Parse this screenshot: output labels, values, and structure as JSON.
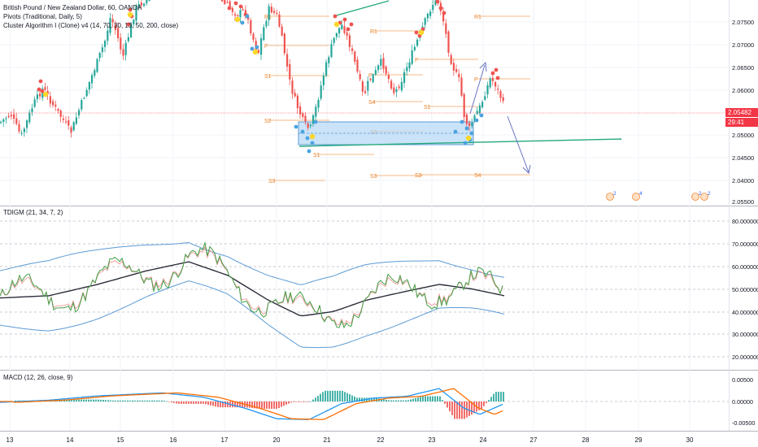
{
  "legend": {
    "symbol": "British Pound / New Zealand Dollar, 60, OANDA",
    "pivots": "Pivots (Traditional, Daily, 5)",
    "cluster": "Cluster Algorithm I (Clone) v4 (14, 70, 30, 13, 50, 200, close)"
  },
  "panes": {
    "tdigm": "TDIGM (21, 34, 7, 2)",
    "macd": "MACD (12, 26, close, 9)"
  },
  "price_axis": {
    "labels": [
      "2.07500",
      "2.07000",
      "2.06500",
      "2.06000",
      "2.05000",
      "2.04500",
      "2.04000"
    ],
    "current_price": "2.05482",
    "countdown": "29:41",
    "countdown_price": "2.05500"
  },
  "tdigm_axis": [
    "80.000000",
    "70.000000",
    "60.000000",
    "50.000000",
    "40.000000",
    "30.000000",
    "20.000000"
  ],
  "macd_axis": [
    "0.00500",
    "0.00000",
    "-0.00500"
  ],
  "time_axis": [
    "13",
    "14",
    "15",
    "16",
    "17",
    "20",
    "21",
    "22",
    "23",
    "24",
    "27",
    "28",
    "29",
    "30"
  ],
  "pivot_labels": [
    "R1",
    "R1",
    "R1",
    "P",
    "P",
    "P",
    "P",
    "S1",
    "S1",
    "S1",
    "S2",
    "S2",
    "S2",
    "S3",
    "S3",
    "S4",
    "S4",
    "S1"
  ],
  "event_badges": [
    "2",
    "4",
    "2",
    "2"
  ],
  "colors": {
    "up": "#26a69a",
    "down": "#ef5350",
    "pivot": "#f5a25d",
    "band": "#5b9bd5",
    "trend": "#22a87a",
    "arrow": "#6a75c4",
    "macd_line": "#2196f3",
    "signal_line": "#ff6d00"
  }
}
